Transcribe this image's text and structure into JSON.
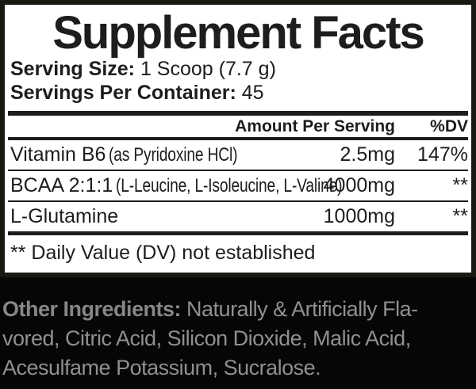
{
  "colors": {
    "page_background": "#060606",
    "panel_background": "#ffffff",
    "panel_text": "#1d1d1b",
    "panel_border": "#191913",
    "ingredients_text": "#909090"
  },
  "panel": {
    "title": "Supplement Facts",
    "serving": {
      "size_label": "Serving Size:",
      "size_value": "1 Scoop (7.7 g)",
      "per_container_label": "Servings Per Container:",
      "per_container_value": "45"
    },
    "table": {
      "amount_header": "Amount Per Serving",
      "dv_header": "%DV",
      "rows": [
        {
          "name": "Vitamin B6",
          "name_detail": "(as Pyridoxine HCl)",
          "amount": "2.5mg",
          "dv": "147%"
        },
        {
          "name": "BCAA 2:1:1",
          "name_detail": "(L-Leucine, L-Isoleucine, L-Valine)",
          "amount": "4000mg",
          "dv": "**"
        },
        {
          "name": "L-Glutamine",
          "name_detail": "",
          "amount": "1000mg",
          "dv": "**"
        }
      ],
      "footnote": "** Daily Value (DV) not established"
    }
  },
  "other_ingredients": {
    "label": "Other Ingredients:",
    "line1_rest": "Naturally & Artificially Fla-",
    "line2": "vored, Citric Acid, Silicon Dioxide, Malic Acid,",
    "line3": "Acesulfame Potassium, Sucralose."
  }
}
